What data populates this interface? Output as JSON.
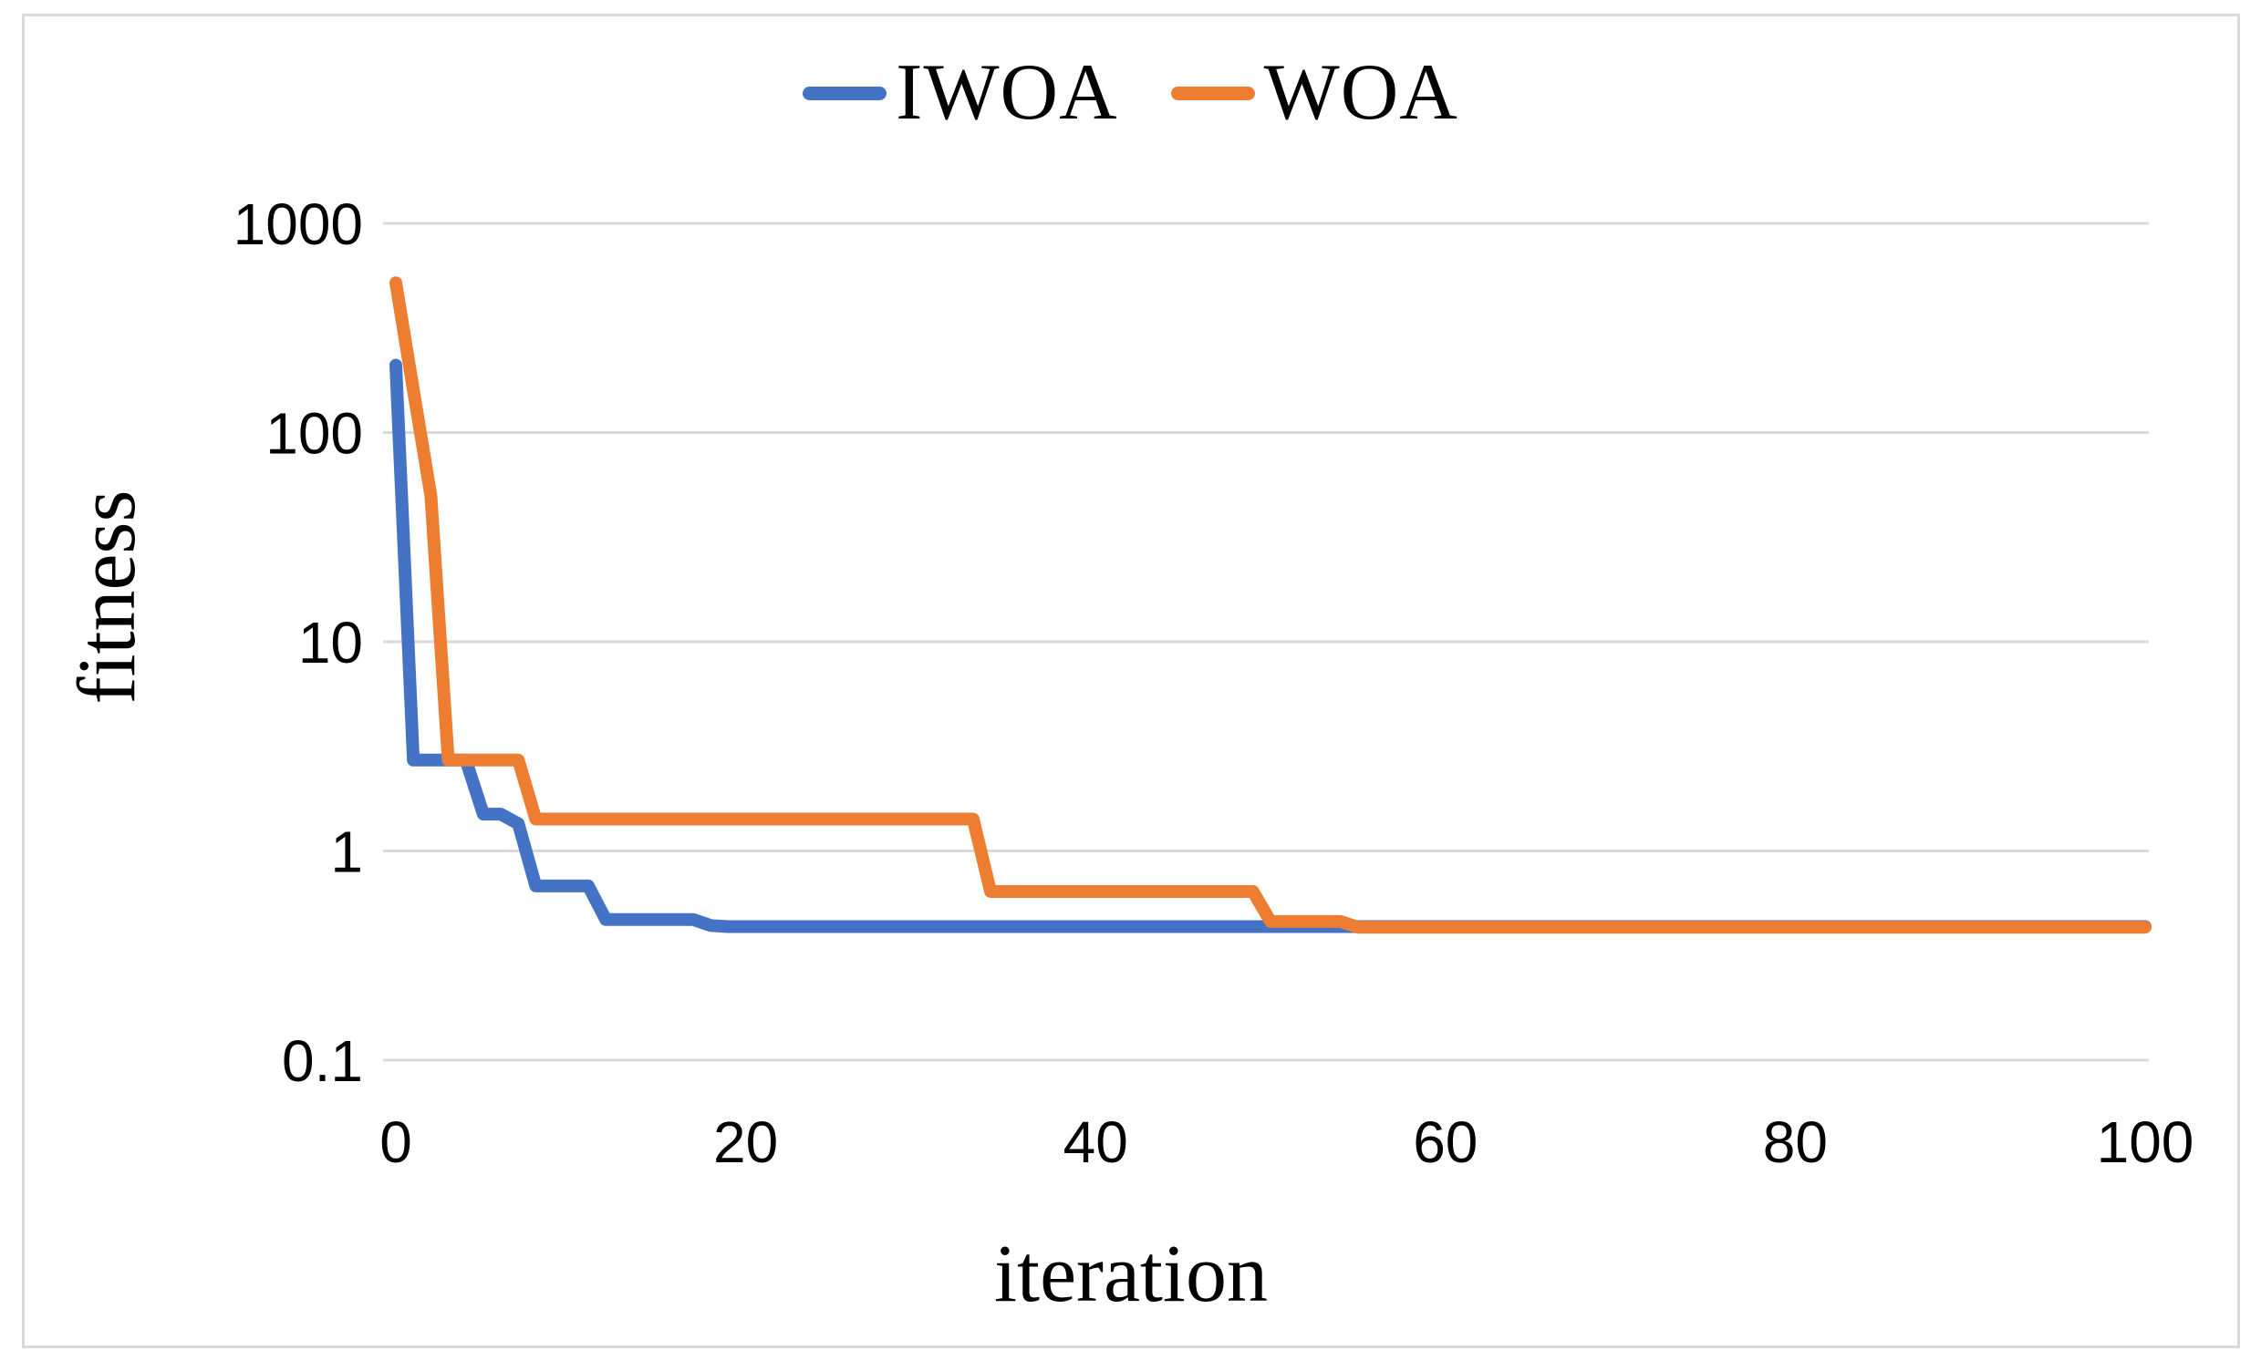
{
  "figure": {
    "kind": "excel-style line chart",
    "background_color": "#ffffff",
    "border_color": "#d9d9d9"
  },
  "legend": {
    "position": "top-center",
    "items": [
      {
        "label": "IWOA",
        "color": "#4472C4",
        "marker": "line-dash-icon"
      },
      {
        "label": "WOA",
        "color": "#ED7D31",
        "marker": "line-dash-icon"
      }
    ]
  },
  "axes": {
    "x_title": "iteration",
    "y_title": "fitness",
    "grid_color": "#d9d9d9",
    "text_color": "#000000"
  },
  "chart_data": {
    "type": "line",
    "title": "",
    "xlabel": "iteration",
    "ylabel": "fitness",
    "grid": "horizontal",
    "legend_position": "top-center",
    "x_axis": {
      "min": 0,
      "max": 100,
      "ticks": [
        0,
        20,
        40,
        60,
        80,
        100
      ]
    },
    "y_axis": {
      "scale": "log10",
      "min": 0.1,
      "max": 1000,
      "ticks": [
        1000,
        100,
        10,
        1,
        0.1
      ]
    },
    "x": [
      0,
      1,
      2,
      3,
      4,
      5,
      6,
      7,
      8,
      9,
      10,
      11,
      12,
      13,
      14,
      15,
      16,
      17,
      18,
      19,
      20,
      21,
      22,
      23,
      24,
      25,
      26,
      27,
      28,
      29,
      30,
      31,
      32,
      33,
      34,
      35,
      36,
      37,
      38,
      39,
      40,
      41,
      42,
      43,
      44,
      45,
      46,
      47,
      48,
      49,
      50,
      51,
      52,
      53,
      54,
      55,
      56,
      57,
      58,
      59,
      60,
      61,
      62,
      63,
      64,
      65,
      66,
      67,
      68,
      69,
      70,
      71,
      72,
      73,
      74,
      75,
      76,
      77,
      78,
      79,
      80,
      81,
      82,
      83,
      84,
      85,
      86,
      87,
      88,
      89,
      90,
      91,
      92,
      93,
      94,
      95,
      96,
      97,
      98,
      99,
      100
    ],
    "series": [
      {
        "name": "IWOA",
        "color": "#4472C4",
        "values": [
          210,
          2.72,
          2.72,
          2.72,
          2.72,
          1.5,
          1.5,
          1.35,
          0.68,
          0.68,
          0.68,
          0.68,
          0.47,
          0.47,
          0.47,
          0.47,
          0.47,
          0.47,
          0.44,
          0.435,
          0.435,
          0.435,
          0.435,
          0.435,
          0.435,
          0.435,
          0.435,
          0.435,
          0.435,
          0.435,
          0.435,
          0.435,
          0.435,
          0.435,
          0.435,
          0.435,
          0.435,
          0.435,
          0.435,
          0.435,
          0.435,
          0.435,
          0.435,
          0.435,
          0.435,
          0.435,
          0.435,
          0.435,
          0.435,
          0.435,
          0.435,
          0.435,
          0.435,
          0.435,
          0.435,
          0.435,
          0.435,
          0.435,
          0.435,
          0.435,
          0.435,
          0.435,
          0.435,
          0.435,
          0.435,
          0.435,
          0.435,
          0.435,
          0.435,
          0.435,
          0.435,
          0.435,
          0.435,
          0.435,
          0.435,
          0.435,
          0.435,
          0.435,
          0.435,
          0.435,
          0.435,
          0.435,
          0.435,
          0.435,
          0.435,
          0.435,
          0.435,
          0.435,
          0.435,
          0.435,
          0.435,
          0.435,
          0.435,
          0.435,
          0.435,
          0.435,
          0.435,
          0.435,
          0.435,
          0.435,
          0.435
        ]
      },
      {
        "name": "WOA",
        "color": "#ED7D31",
        "values": [
          520,
          160,
          50,
          2.72,
          2.72,
          2.72,
          2.72,
          2.72,
          1.42,
          1.42,
          1.42,
          1.42,
          1.42,
          1.42,
          1.42,
          1.42,
          1.42,
          1.42,
          1.42,
          1.42,
          1.42,
          1.42,
          1.42,
          1.42,
          1.42,
          1.42,
          1.42,
          1.42,
          1.42,
          1.42,
          1.42,
          1.42,
          1.42,
          1.42,
          0.64,
          0.64,
          0.64,
          0.64,
          0.64,
          0.64,
          0.64,
          0.64,
          0.64,
          0.64,
          0.64,
          0.64,
          0.64,
          0.64,
          0.64,
          0.64,
          0.46,
          0.46,
          0.46,
          0.46,
          0.46,
          0.432,
          0.432,
          0.432,
          0.432,
          0.432,
          0.432,
          0.432,
          0.432,
          0.432,
          0.432,
          0.432,
          0.432,
          0.432,
          0.432,
          0.432,
          0.432,
          0.432,
          0.432,
          0.432,
          0.432,
          0.432,
          0.432,
          0.432,
          0.432,
          0.432,
          0.432,
          0.432,
          0.432,
          0.432,
          0.432,
          0.432,
          0.432,
          0.432,
          0.432,
          0.432,
          0.432,
          0.432,
          0.432,
          0.432,
          0.432,
          0.432,
          0.432,
          0.432,
          0.432,
          0.432,
          0.432
        ]
      }
    ]
  }
}
